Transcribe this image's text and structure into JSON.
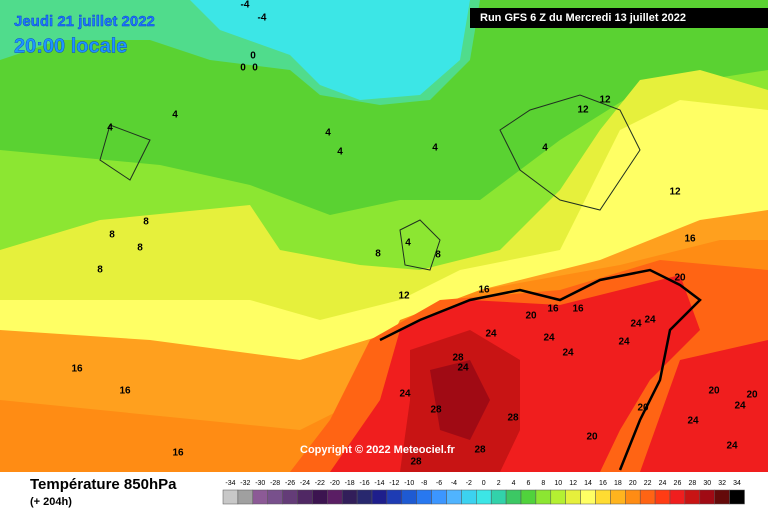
{
  "header": {
    "date": "Jeudi 21 juillet 2022",
    "time": "20:00 locale",
    "run": "Run GFS 6 Z du Mercredi 13 juillet 2022"
  },
  "copyright": "Copyright © 2022 Meteociel.fr",
  "footer": {
    "title": "Température 850hPa",
    "lead": "(+ 204h)"
  },
  "contour_labels": [
    -4,
    -4,
    0,
    0,
    0,
    4,
    4,
    4,
    4,
    4,
    4,
    4,
    8,
    8,
    8,
    8,
    8,
    8,
    12,
    12,
    12,
    12,
    16,
    16,
    16,
    16,
    16,
    16,
    16,
    20,
    20,
    20,
    20,
    20,
    20,
    24,
    24,
    24,
    24,
    24,
    24,
    24,
    24,
    24,
    24,
    24,
    28,
    28,
    28,
    28,
    28
  ],
  "scale": {
    "labels": [
      -34,
      -32,
      -30,
      -28,
      -26,
      -24,
      -22,
      -20,
      -18,
      -16,
      -14,
      -12,
      -10,
      -8,
      -6,
      -4,
      -2,
      0,
      2,
      4,
      6,
      8,
      10,
      12,
      14,
      16,
      18,
      20,
      22,
      24,
      26,
      28,
      30,
      32,
      34
    ],
    "colors": [
      "#c8c8c8",
      "#a0a0a0",
      "#8c5a96",
      "#78508c",
      "#643c78",
      "#502864",
      "#3c1450",
      "#5a1e64",
      "#321e5a",
      "#28286e",
      "#1e1e8c",
      "#1e3cb4",
      "#1e5ad2",
      "#2878f0",
      "#3c96ff",
      "#50b4ff",
      "#3cd2f0",
      "#3ce6e6",
      "#32d2aa",
      "#3cc864",
      "#50d23c",
      "#8ce632",
      "#b4f032",
      "#e6f03c",
      "#ffff64",
      "#ffdc32",
      "#ffb41e",
      "#ff8c14",
      "#ff6414",
      "#ff3c14",
      "#f01e1e",
      "#c81414",
      "#a00a14",
      "#640a0a",
      "#000000"
    ]
  }
}
